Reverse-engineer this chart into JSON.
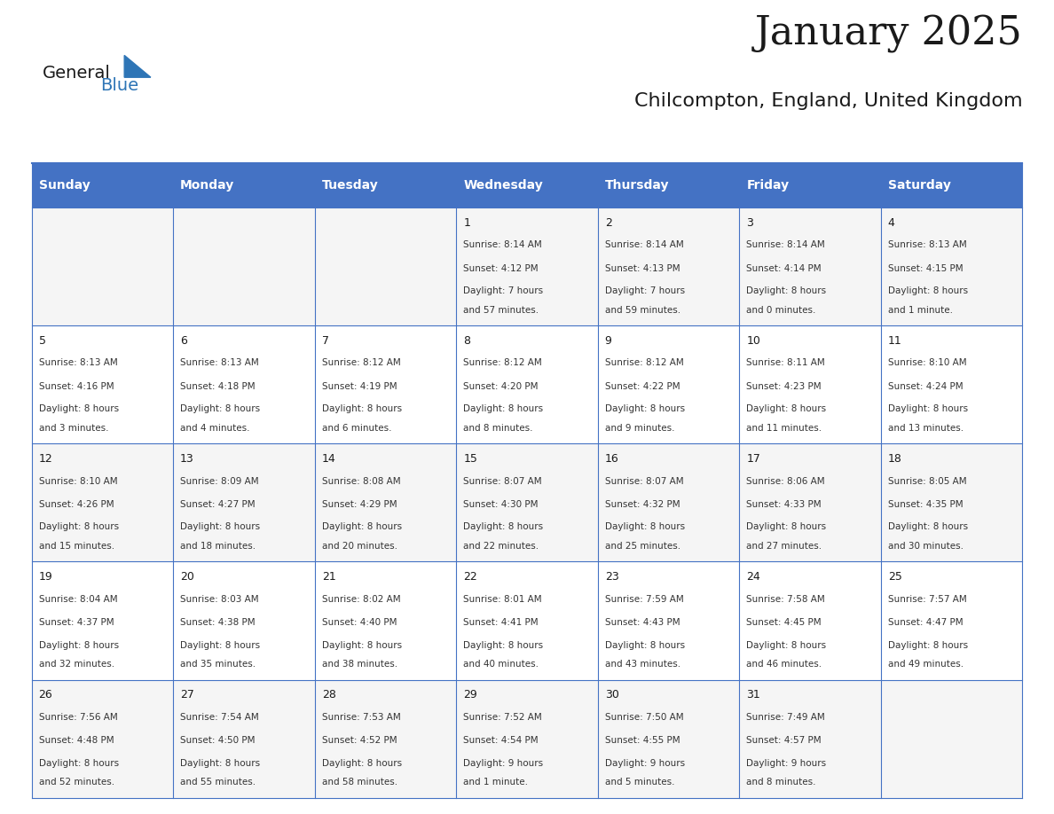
{
  "title": "January 2025",
  "subtitle": "Chilcompton, England, United Kingdom",
  "header_color": "#4472C4",
  "header_text_color": "#FFFFFF",
  "cell_bg_color": "#FFFFFF",
  "alt_cell_bg_color": "#F2F2F2",
  "border_color": "#4472C4",
  "title_color": "#000000",
  "day_names": [
    "Sunday",
    "Monday",
    "Tuesday",
    "Wednesday",
    "Thursday",
    "Friday",
    "Saturday"
  ],
  "days_data": [
    {
      "day": 1,
      "col": 3,
      "row": 0,
      "sunrise": "8:14 AM",
      "sunset": "4:12 PM",
      "daylight": "7 hours and 57 minutes."
    },
    {
      "day": 2,
      "col": 4,
      "row": 0,
      "sunrise": "8:14 AM",
      "sunset": "4:13 PM",
      "daylight": "7 hours and 59 minutes."
    },
    {
      "day": 3,
      "col": 5,
      "row": 0,
      "sunrise": "8:14 AM",
      "sunset": "4:14 PM",
      "daylight": "8 hours and 0 minutes."
    },
    {
      "day": 4,
      "col": 6,
      "row": 0,
      "sunrise": "8:13 AM",
      "sunset": "4:15 PM",
      "daylight": "8 hours and 1 minute."
    },
    {
      "day": 5,
      "col": 0,
      "row": 1,
      "sunrise": "8:13 AM",
      "sunset": "4:16 PM",
      "daylight": "8 hours and 3 minutes."
    },
    {
      "day": 6,
      "col": 1,
      "row": 1,
      "sunrise": "8:13 AM",
      "sunset": "4:18 PM",
      "daylight": "8 hours and 4 minutes."
    },
    {
      "day": 7,
      "col": 2,
      "row": 1,
      "sunrise": "8:12 AM",
      "sunset": "4:19 PM",
      "daylight": "8 hours and 6 minutes."
    },
    {
      "day": 8,
      "col": 3,
      "row": 1,
      "sunrise": "8:12 AM",
      "sunset": "4:20 PM",
      "daylight": "8 hours and 8 minutes."
    },
    {
      "day": 9,
      "col": 4,
      "row": 1,
      "sunrise": "8:12 AM",
      "sunset": "4:22 PM",
      "daylight": "8 hours and 9 minutes."
    },
    {
      "day": 10,
      "col": 5,
      "row": 1,
      "sunrise": "8:11 AM",
      "sunset": "4:23 PM",
      "daylight": "8 hours and 11 minutes."
    },
    {
      "day": 11,
      "col": 6,
      "row": 1,
      "sunrise": "8:10 AM",
      "sunset": "4:24 PM",
      "daylight": "8 hours and 13 minutes."
    },
    {
      "day": 12,
      "col": 0,
      "row": 2,
      "sunrise": "8:10 AM",
      "sunset": "4:26 PM",
      "daylight": "8 hours and 15 minutes."
    },
    {
      "day": 13,
      "col": 1,
      "row": 2,
      "sunrise": "8:09 AM",
      "sunset": "4:27 PM",
      "daylight": "8 hours and 18 minutes."
    },
    {
      "day": 14,
      "col": 2,
      "row": 2,
      "sunrise": "8:08 AM",
      "sunset": "4:29 PM",
      "daylight": "8 hours and 20 minutes."
    },
    {
      "day": 15,
      "col": 3,
      "row": 2,
      "sunrise": "8:07 AM",
      "sunset": "4:30 PM",
      "daylight": "8 hours and 22 minutes."
    },
    {
      "day": 16,
      "col": 4,
      "row": 2,
      "sunrise": "8:07 AM",
      "sunset": "4:32 PM",
      "daylight": "8 hours and 25 minutes."
    },
    {
      "day": 17,
      "col": 5,
      "row": 2,
      "sunrise": "8:06 AM",
      "sunset": "4:33 PM",
      "daylight": "8 hours and 27 minutes."
    },
    {
      "day": 18,
      "col": 6,
      "row": 2,
      "sunrise": "8:05 AM",
      "sunset": "4:35 PM",
      "daylight": "8 hours and 30 minutes."
    },
    {
      "day": 19,
      "col": 0,
      "row": 3,
      "sunrise": "8:04 AM",
      "sunset": "4:37 PM",
      "daylight": "8 hours and 32 minutes."
    },
    {
      "day": 20,
      "col": 1,
      "row": 3,
      "sunrise": "8:03 AM",
      "sunset": "4:38 PM",
      "daylight": "8 hours and 35 minutes."
    },
    {
      "day": 21,
      "col": 2,
      "row": 3,
      "sunrise": "8:02 AM",
      "sunset": "4:40 PM",
      "daylight": "8 hours and 38 minutes."
    },
    {
      "day": 22,
      "col": 3,
      "row": 3,
      "sunrise": "8:01 AM",
      "sunset": "4:41 PM",
      "daylight": "8 hours and 40 minutes."
    },
    {
      "day": 23,
      "col": 4,
      "row": 3,
      "sunrise": "7:59 AM",
      "sunset": "4:43 PM",
      "daylight": "8 hours and 43 minutes."
    },
    {
      "day": 24,
      "col": 5,
      "row": 3,
      "sunrise": "7:58 AM",
      "sunset": "4:45 PM",
      "daylight": "8 hours and 46 minutes."
    },
    {
      "day": 25,
      "col": 6,
      "row": 3,
      "sunrise": "7:57 AM",
      "sunset": "4:47 PM",
      "daylight": "8 hours and 49 minutes."
    },
    {
      "day": 26,
      "col": 0,
      "row": 4,
      "sunrise": "7:56 AM",
      "sunset": "4:48 PM",
      "daylight": "8 hours and 52 minutes."
    },
    {
      "day": 27,
      "col": 1,
      "row": 4,
      "sunrise": "7:54 AM",
      "sunset": "4:50 PM",
      "daylight": "8 hours and 55 minutes."
    },
    {
      "day": 28,
      "col": 2,
      "row": 4,
      "sunrise": "7:53 AM",
      "sunset": "4:52 PM",
      "daylight": "8 hours and 58 minutes."
    },
    {
      "day": 29,
      "col": 3,
      "row": 4,
      "sunrise": "7:52 AM",
      "sunset": "4:54 PM",
      "daylight": "9 hours and 1 minute."
    },
    {
      "day": 30,
      "col": 4,
      "row": 4,
      "sunrise": "7:50 AM",
      "sunset": "4:55 PM",
      "daylight": "9 hours and 5 minutes."
    },
    {
      "day": 31,
      "col": 5,
      "row": 4,
      "sunrise": "7:49 AM",
      "sunset": "4:57 PM",
      "daylight": "9 hours and 8 minutes."
    }
  ],
  "num_rows": 5,
  "logo_text_general": "General",
  "logo_text_blue": "Blue",
  "logo_triangle_color": "#2E75B6"
}
